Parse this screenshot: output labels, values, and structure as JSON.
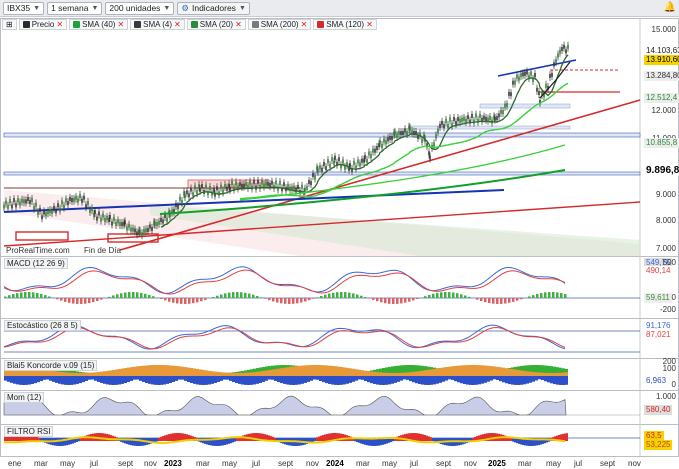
{
  "toolbar": {
    "symbol": "IBX35",
    "period": "1 semana",
    "units": "200 unidades",
    "indicators": "Indicadores"
  },
  "legend": [
    {
      "label": "Precio",
      "color": "#2b2b2b"
    },
    {
      "label": "SMA (40)",
      "color": "#1aa53a"
    },
    {
      "label": "SMA (4)",
      "color": "#3a3a3a"
    },
    {
      "label": "SMA (20)",
      "color": "#2c8a3c"
    },
    {
      "label": "SMA (200)",
      "color": "#7a7a7a"
    },
    {
      "label": "SMA (120)",
      "color": "#d62a2a"
    }
  ],
  "colors": {
    "up": "#1aa53a",
    "down": "#d62a2a",
    "blue_line": "#1434b4"
  },
  "price_axis": {
    "ticks": [
      "15.000",
      "12.000",
      "11.000",
      "10.000",
      "9.000",
      "8.000",
      "7.000"
    ]
  },
  "price_tags": {
    "last_high": "14.103,63",
    "last_close": "13.910,60",
    "sma4": "13.284,80",
    "sma20": "12.512,4",
    "sma40": "10.855,8",
    "sma120": "9.896,8"
  },
  "watermark": {
    "provider": "ProRealTime.com",
    "note": "Fin de Día"
  },
  "panels": {
    "macd": {
      "title": "MACD (12 26 9)",
      "values": [
        "549,75",
        "490,14",
        "59,611"
      ],
      "ticks": [
        "500",
        "0",
        "-200"
      ]
    },
    "stoch": {
      "title": "Estocástico (26 8 5)",
      "values": [
        "91,176",
        "87,021"
      ]
    },
    "blai5": {
      "title": "Blai5 Koncorde v.09 (15)",
      "values": [
        "6,963"
      ],
      "ticks": [
        "200",
        "100",
        "0"
      ]
    },
    "mom": {
      "title": "Mom (12)",
      "values": [
        "580,40"
      ],
      "ticks": [
        "1.000"
      ]
    },
    "filtro": {
      "title": "FILTRO RSI",
      "values": [
        "63,5",
        "53,225"
      ]
    }
  },
  "x_axis": [
    {
      "label": "ene"
    },
    {
      "label": "mar"
    },
    {
      "label": "may"
    },
    {
      "label": "jul"
    },
    {
      "label": "sept"
    },
    {
      "label": "nov"
    },
    {
      "label": "2023",
      "year": true
    },
    {
      "label": "mar"
    },
    {
      "label": "may"
    },
    {
      "label": "jul"
    },
    {
      "label": "sept"
    },
    {
      "label": "nov"
    },
    {
      "label": "2024",
      "year": true
    },
    {
      "label": "mar"
    },
    {
      "label": "may"
    },
    {
      "label": "jul"
    },
    {
      "label": "sept"
    },
    {
      "label": "nov"
    },
    {
      "label": "2025",
      "year": true
    },
    {
      "label": "mar"
    },
    {
      "label": "may"
    },
    {
      "label": "jul"
    },
    {
      "label": "sept"
    },
    {
      "label": "nov"
    }
  ]
}
